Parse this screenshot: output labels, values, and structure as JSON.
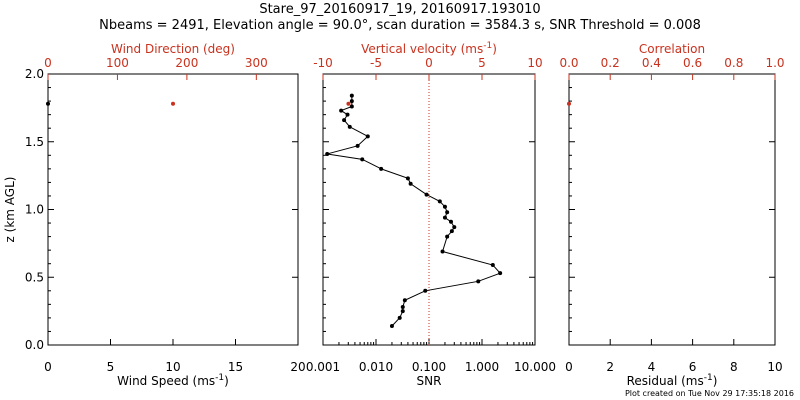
{
  "title_line1": "Stare_97_20160917_19, 20160917.193010",
  "title_line2": "Nbeams = 2491, Elevation angle = 90.0°, scan duration = 3584.3 s, SNR Threshold = 0.008",
  "credit": "Plot created on Tue Nov 29 17:35:18 2016",
  "colors": {
    "axis": "#000000",
    "accent": "#c8321e"
  },
  "chart_data": [
    {
      "type": "scatter",
      "panel": "wind",
      "ylabel": "z (km AGL)",
      "ylim": [
        0,
        2.0
      ],
      "yticks": [
        "0.0",
        "0.5",
        "1.0",
        "1.5",
        "2.0"
      ],
      "ytick_values": [
        0.0,
        0.5,
        1.0,
        1.5,
        2.0
      ],
      "bottom_axis": {
        "label": "Wind Speed (ms",
        "label_sup": "-1",
        "label_end": ")",
        "range": [
          0,
          20
        ],
        "ticks": [
          0,
          5,
          10,
          15,
          20
        ]
      },
      "top_axis": {
        "label": "Wind Direction (deg)",
        "range": [
          0,
          360
        ],
        "ticks": [
          0,
          100,
          200,
          300
        ],
        "color": "#c8321e"
      },
      "series": [
        {
          "axis": "bottom",
          "color": "#000000",
          "points": [
            {
              "x": 0,
              "z": 1.78
            }
          ]
        },
        {
          "axis": "top",
          "color": "#c8321e",
          "points": [
            {
              "x": 180,
              "z": 1.78
            }
          ]
        }
      ]
    },
    {
      "type": "line",
      "panel": "snr",
      "ylim": [
        0,
        2.0
      ],
      "bottom_axis": {
        "label": "SNR",
        "scale": "log",
        "range": [
          0.001,
          10
        ],
        "ticks": [
          0.001,
          0.01,
          0.1,
          1,
          10
        ],
        "tick_labels": [
          "0.001",
          "0.010",
          "0.100",
          "1.000",
          "10.000"
        ]
      },
      "top_axis": {
        "label": "Vertical velocity (ms",
        "label_sup": "-1",
        "label_end": ")",
        "range": [
          -10,
          10
        ],
        "ticks": [
          -10,
          -5,
          0,
          5,
          10
        ],
        "color": "#c8321e",
        "reference_line": 0
      },
      "series": [
        {
          "axis": "bottom",
          "color": "#000000",
          "points": [
            {
              "x": 0.0035,
              "z": 1.84
            },
            {
              "x": 0.0035,
              "z": 1.8
            },
            {
              "x": 0.0035,
              "z": 1.76
            },
            {
              "x": 0.0022,
              "z": 1.73
            },
            {
              "x": 0.0029,
              "z": 1.7
            },
            {
              "x": 0.0025,
              "z": 1.66
            },
            {
              "x": 0.0032,
              "z": 1.61
            },
            {
              "x": 0.007,
              "z": 1.54
            },
            {
              "x": 0.0045,
              "z": 1.47
            },
            {
              "x": 0.0012,
              "z": 1.41
            },
            {
              "x": 0.0055,
              "z": 1.37
            },
            {
              "x": 0.0125,
              "z": 1.3
            },
            {
              "x": 0.04,
              "z": 1.23
            },
            {
              "x": 0.045,
              "z": 1.19
            },
            {
              "x": 0.09,
              "z": 1.11
            },
            {
              "x": 0.16,
              "z": 1.06
            },
            {
              "x": 0.2,
              "z": 1.02
            },
            {
              "x": 0.22,
              "z": 0.98
            },
            {
              "x": 0.2,
              "z": 0.94
            },
            {
              "x": 0.26,
              "z": 0.91
            },
            {
              "x": 0.3,
              "z": 0.87
            },
            {
              "x": 0.27,
              "z": 0.84
            },
            {
              "x": 0.22,
              "z": 0.8
            },
            {
              "x": 0.18,
              "z": 0.69
            },
            {
              "x": 1.6,
              "z": 0.59
            },
            {
              "x": 2.2,
              "z": 0.53
            },
            {
              "x": 0.85,
              "z": 0.47
            },
            {
              "x": 0.085,
              "z": 0.4
            },
            {
              "x": 0.035,
              "z": 0.33
            },
            {
              "x": 0.032,
              "z": 0.28
            },
            {
              "x": 0.032,
              "z": 0.25
            },
            {
              "x": 0.028,
              "z": 0.2
            },
            {
              "x": 0.02,
              "z": 0.14
            }
          ]
        },
        {
          "axis": "top",
          "color": "#c8321e",
          "points": [
            {
              "x": -7.6,
              "z": 1.78
            }
          ]
        }
      ]
    },
    {
      "type": "scatter",
      "panel": "correlation",
      "ylim": [
        0,
        2.0
      ],
      "bottom_axis": {
        "label": "Residual (ms",
        "label_sup": "-1",
        "label_end": ")",
        "range": [
          0,
          10
        ],
        "ticks": [
          0,
          2,
          4,
          6,
          8,
          10
        ]
      },
      "top_axis": {
        "label": "Correlation",
        "range": [
          0,
          1
        ],
        "ticks": [
          0,
          0.2,
          0.4,
          0.6,
          0.8,
          1.0
        ],
        "tick_labels": [
          "0.0",
          "0.2",
          "0.4",
          "0.6",
          "0.8",
          "1.0"
        ],
        "color": "#c8321e"
      },
      "series": [
        {
          "axis": "top",
          "color": "#c8321e",
          "points": [
            {
              "x": 0,
              "z": 1.78
            }
          ]
        }
      ]
    }
  ]
}
